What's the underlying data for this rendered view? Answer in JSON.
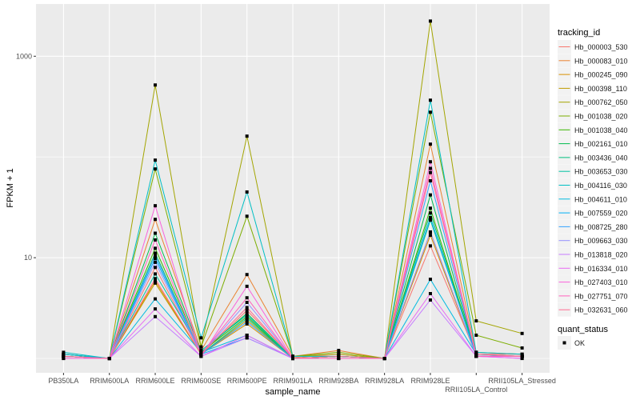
{
  "chart_data": {
    "type": "line",
    "title": "",
    "xlabel": "sample_name",
    "ylabel": "FPKM + 1",
    "y_scale": "log10",
    "ylim": [
      0.72,
      3300
    ],
    "y_ticks": [
      {
        "value": 10,
        "label": "10"
      },
      {
        "value": 1000,
        "label": "1000"
      }
    ],
    "y_minor_ticks": [
      1,
      100
    ],
    "grid": true,
    "legend_position": "right",
    "categories": [
      "PB350LA",
      "RRIM600LA",
      "RRIM600LE",
      "RRIM600SE",
      "RRIM600PE",
      "RRIM901LA",
      "RRIM928BA",
      "RRIM928LA",
      "RRIM928LE",
      "RRII105LA_Control",
      "RRII105LA_Stressed"
    ],
    "legend_title": "tracking_id",
    "shape_legend_title": "quant_status",
    "shape_legend_items": [
      "OK"
    ],
    "series": [
      {
        "name": "Hb_000003_530",
        "color": "#F8766D",
        "values": [
          1.05,
          1,
          8.0,
          1.1,
          3.0,
          1.02,
          1.1,
          1,
          13.1,
          1.1,
          1.1
        ]
      },
      {
        "name": "Hb_000083_010",
        "color": "#EA8331",
        "values": [
          1.1,
          1,
          24,
          1.2,
          6.8,
          1.05,
          1.2,
          1,
          134,
          1.15,
          1.1
        ]
      },
      {
        "name": "Hb_000245_090",
        "color": "#D89000",
        "values": [
          1.05,
          1,
          5.9,
          1.1,
          2.2,
          1.0,
          1.05,
          1,
          16.7,
          1.05,
          1.05
        ]
      },
      {
        "name": "Hb_000398_110",
        "color": "#C09B00",
        "values": [
          1.05,
          1,
          5.6,
          1.1,
          2.4,
          1.0,
          1.05,
          1,
          18,
          1.05,
          1.05
        ]
      },
      {
        "name": "Hb_000762_050",
        "color": "#A3A500",
        "values": [
          1.1,
          1,
          518,
          1.3,
          161,
          1.05,
          1.1,
          1,
          2233,
          2.36,
          1.77
        ]
      },
      {
        "name": "Hb_001038_020",
        "color": "#7CAE00",
        "values": [
          1.1,
          1,
          76,
          1.3,
          25.8,
          1.05,
          1.15,
          1,
          278,
          1.7,
          1.27
        ]
      },
      {
        "name": "Hb_001038_040",
        "color": "#39B600",
        "values": [
          1.05,
          1,
          12.4,
          1.15,
          2.6,
          1.0,
          1.05,
          1,
          31,
          1.05,
          1.05
        ]
      },
      {
        "name": "Hb_002161_010",
        "color": "#00BB4E",
        "values": [
          1.05,
          1,
          17.5,
          1.15,
          2.8,
          1.0,
          1.05,
          1,
          42,
          1.05,
          1.05
        ]
      },
      {
        "name": "Hb_003436_040",
        "color": "#00BF7D",
        "values": [
          1.05,
          1,
          11.1,
          1.1,
          2.5,
          1.0,
          1.05,
          1,
          27.8,
          1.05,
          1.05
        ]
      },
      {
        "name": "Hb_003653_030",
        "color": "#00C1A3",
        "values": [
          1.1,
          1,
          6.9,
          1.2,
          2.7,
          1.0,
          1.05,
          1,
          23.6,
          1.1,
          1.05
        ]
      },
      {
        "name": "Hb_004116_030",
        "color": "#00BFC4",
        "values": [
          1.15,
          1,
          93,
          1.6,
          44.9,
          1.05,
          1.05,
          1,
          366,
          1.15,
          1.1
        ]
      },
      {
        "name": "Hb_004611_010",
        "color": "#00BAE0",
        "values": [
          1.1,
          1,
          3.9,
          1.15,
          1.7,
          1.0,
          1.0,
          1,
          6.1,
          1.1,
          1.05
        ]
      },
      {
        "name": "Hb_007559_020",
        "color": "#00B0F6",
        "values": [
          1.05,
          1,
          9.8,
          1.1,
          1.6,
          1.0,
          1.0,
          1,
          25,
          1.05,
          1.05
        ]
      },
      {
        "name": "Hb_008725_280",
        "color": "#35A2FF",
        "values": [
          1.05,
          1,
          10.5,
          1.1,
          2.3,
          1.0,
          1.0,
          1,
          58,
          1.05,
          1.05
        ]
      },
      {
        "name": "Hb_009663_030",
        "color": "#9590FF",
        "values": [
          1.05,
          1,
          9.0,
          1.1,
          3.6,
          1.0,
          1.0,
          1,
          18,
          1.05,
          1.05
        ]
      },
      {
        "name": "Hb_013818_020",
        "color": "#C77CFF",
        "values": [
          1.0,
          1,
          2.6,
          1.05,
          1.6,
          1.0,
          1.0,
          1,
          3.8,
          1.05,
          1.0
        ]
      },
      {
        "name": "Hb_016334_010",
        "color": "#E76BF3",
        "values": [
          1.0,
          1,
          3.1,
          1.05,
          1.7,
          1.0,
          1.0,
          1,
          4.4,
          1.05,
          1.0
        ]
      },
      {
        "name": "Hb_027403_010",
        "color": "#FA62DB",
        "values": [
          1.0,
          1,
          32.8,
          1.05,
          5.2,
          1.0,
          1.0,
          1,
          89.6,
          1.05,
          1.05
        ]
      },
      {
        "name": "Hb_027751_070",
        "color": "#FF62BC",
        "values": [
          1.05,
          1,
          15,
          1.1,
          4.0,
          1.0,
          1.0,
          1,
          77,
          1.05,
          1.05
        ]
      },
      {
        "name": "Hb_032631_060",
        "color": "#FF6C91",
        "values": [
          1.05,
          1,
          6.2,
          1.1,
          3.2,
          1.0,
          1.05,
          1,
          70,
          1.1,
          1.05
        ]
      }
    ]
  }
}
